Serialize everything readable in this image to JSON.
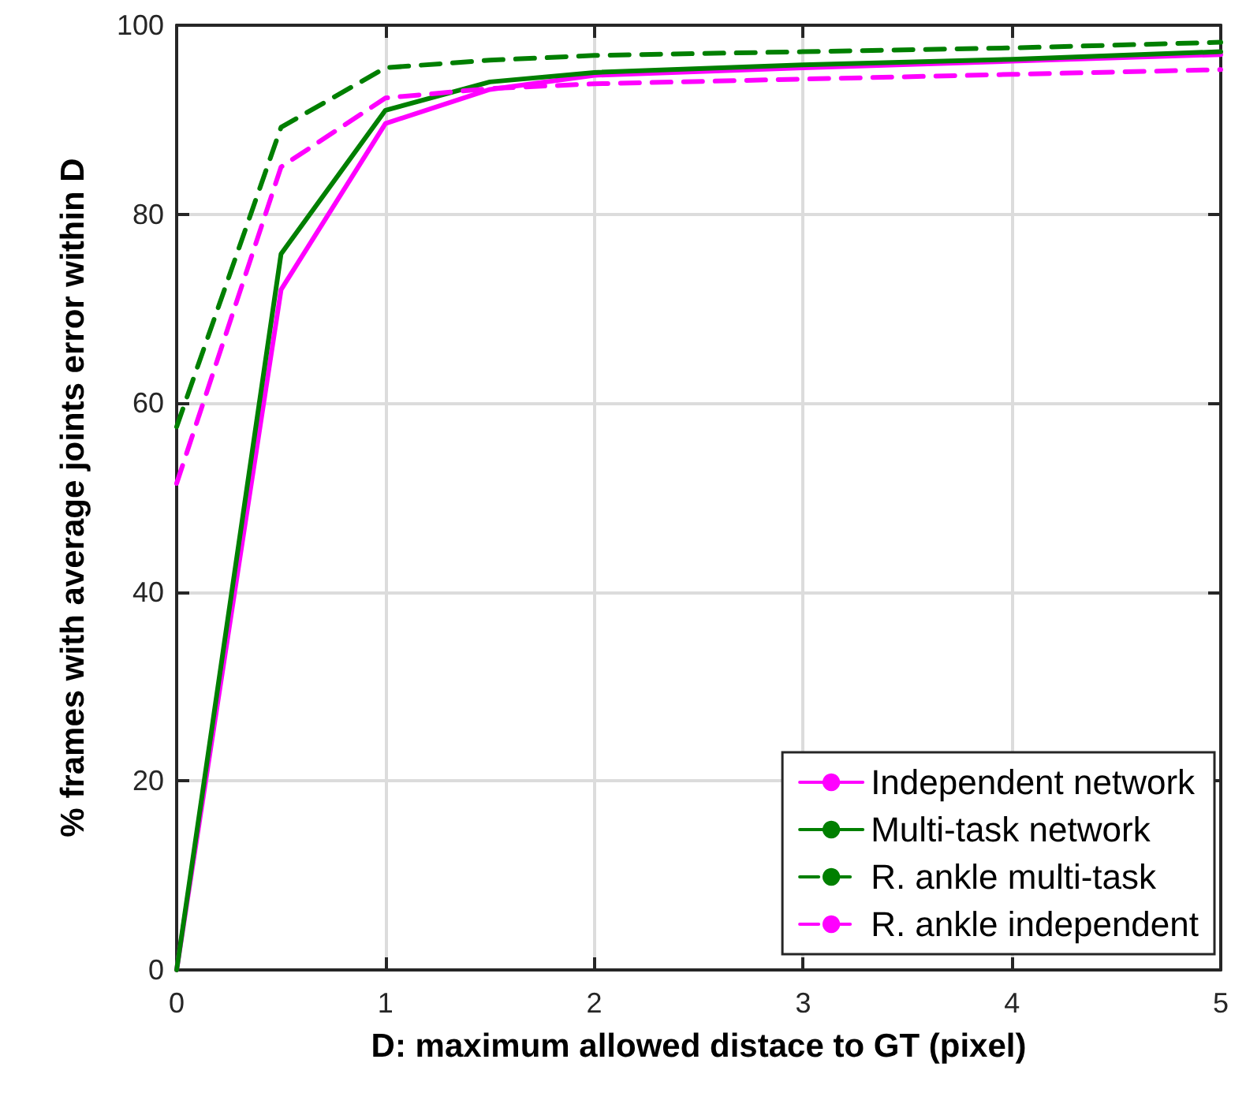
{
  "chart_data": {
    "type": "line",
    "xlabel": "D: maximum allowed distace to GT (pixel)",
    "ylabel": "% frames with average joints error within D",
    "x": [
      0,
      0.5,
      1,
      1.5,
      2,
      3,
      4,
      5
    ],
    "series": [
      {
        "name": "Independent network",
        "color": "#ff00ff",
        "line_style": "solid",
        "values": [
          0,
          72,
          89.6,
          93.2,
          94.7,
          95.5,
          96.2,
          96.9
        ]
      },
      {
        "name": "Multi-task network",
        "color": "#007f00",
        "line_style": "solid",
        "values": [
          0,
          75.8,
          91,
          94,
          95,
          95.8,
          96.4,
          97.2
        ]
      },
      {
        "name": "R. ankle multi-task",
        "color": "#007f00",
        "line_style": "dashed",
        "values": [
          57.5,
          89.2,
          95.5,
          96.3,
          96.8,
          97.2,
          97.6,
          98.2
        ]
      },
      {
        "name": "R. ankle independent",
        "color": "#ff00ff",
        "line_style": "dashed",
        "values": [
          51.5,
          85,
          92.3,
          93.3,
          93.8,
          94.3,
          94.8,
          95.3
        ]
      }
    ],
    "xlim": [
      0,
      5
    ],
    "xticks": [
      0,
      1,
      2,
      3,
      4,
      5
    ],
    "ylim": [
      0,
      100
    ],
    "yticks": [
      0,
      20,
      40,
      60,
      80,
      100
    ],
    "grid": true,
    "legend": "bottom right",
    "marker": "none"
  }
}
